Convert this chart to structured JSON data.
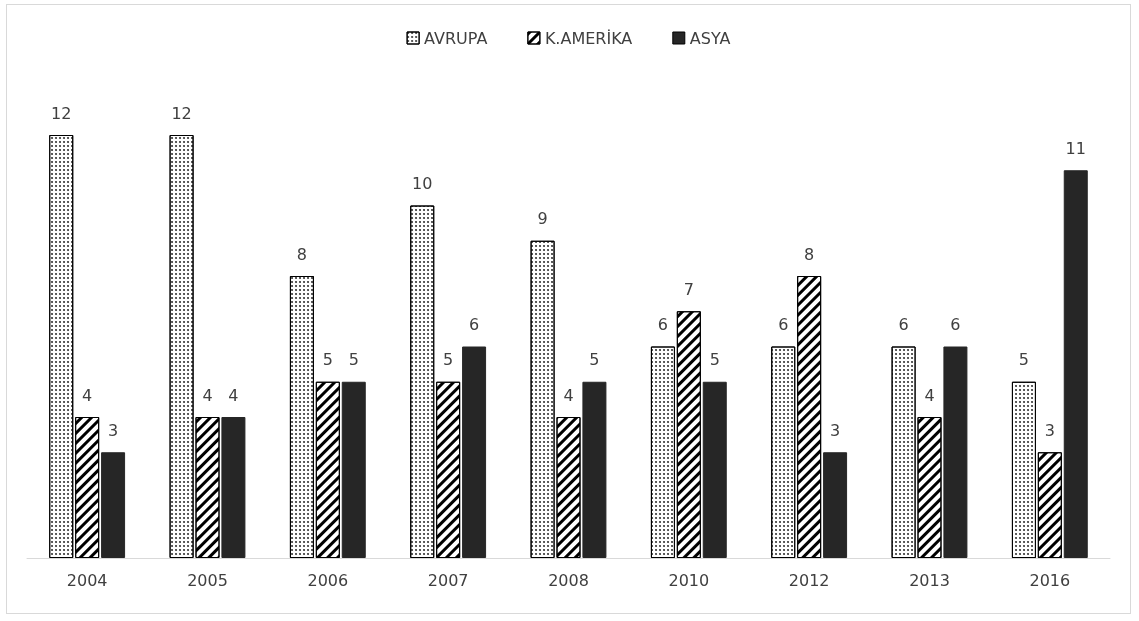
{
  "chart_data": {
    "type": "bar",
    "categories": [
      "2004",
      "2005",
      "2006",
      "2007",
      "2008",
      "2010",
      "2012",
      "2013",
      "2016"
    ],
    "series": [
      {
        "name": "AVRUPA",
        "color": "#ffffff",
        "values": [
          12,
          12,
          8,
          10,
          9,
          6,
          6,
          6,
          5
        ]
      },
      {
        "name": "K.AMERİKA",
        "color": "#ffffff",
        "values": [
          4,
          4,
          5,
          5,
          4,
          7,
          8,
          4,
          3
        ]
      },
      {
        "name": "ASYA",
        "color": "#262626",
        "values": [
          3,
          4,
          5,
          6,
          5,
          5,
          3,
          6,
          11
        ]
      }
    ],
    "data_labels": true,
    "legend": "top"
  }
}
